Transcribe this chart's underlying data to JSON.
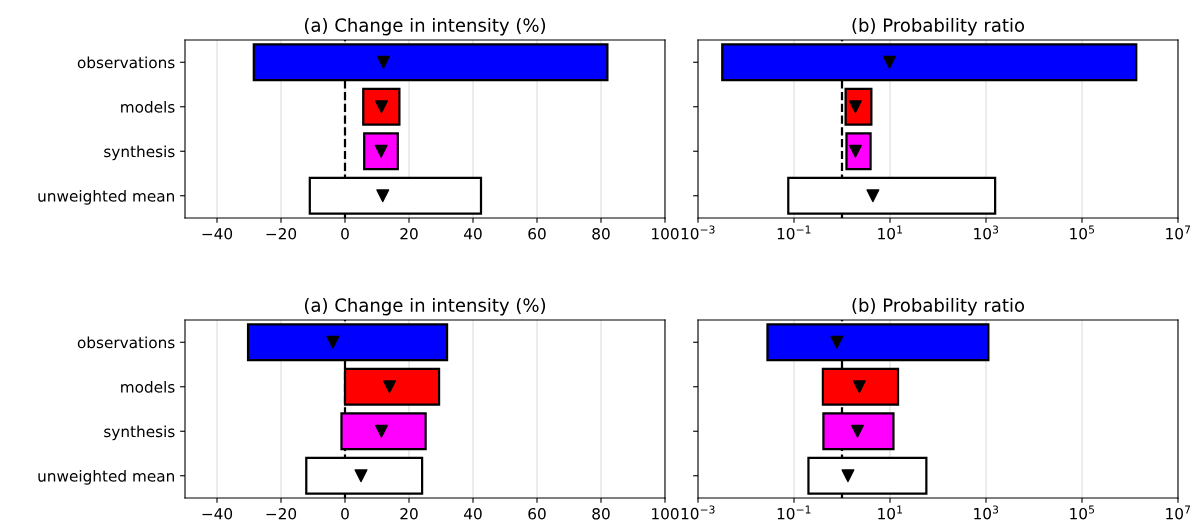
{
  "chart_data": [
    {
      "type": "bar",
      "orientation": "horizontal",
      "title": "(a) Change in intensity (%)",
      "categories": [
        "observations",
        "models",
        "synthesis",
        "unweighted mean"
      ],
      "xlim": [
        -50,
        100
      ],
      "xticks": [
        {
          "value": -40,
          "label": "−40"
        },
        {
          "value": -20,
          "label": "−20"
        },
        0,
        20,
        40,
        60,
        80,
        100
      ],
      "grid": "x",
      "series": [
        {
          "type": "bar",
          "colors": [
            "#0000ff",
            "#ff0000",
            "#ff00ff",
            "#ffffff"
          ],
          "base": [
            -28.5,
            5.7,
            6,
            -11
          ],
          "values": [
            110.5,
            11.3,
            10.5,
            53.5
          ]
        },
        {
          "type": "scatter",
          "marker": "triangle",
          "color": "#000000",
          "values": [
            12,
            11.4,
            11.3,
            11.8
          ]
        }
      ],
      "ref_lines": [
        {
          "axis": "x",
          "value": 0,
          "color": "#000000",
          "line_style": "dashed"
        }
      ]
    },
    {
      "type": "bar",
      "orientation": "horizontal",
      "title": "(b) Probability ratio",
      "categories": [
        null,
        null,
        null,
        null
      ],
      "log": "x",
      "xlim": [
        0.001,
        10000000
      ],
      "xticks": [
        {
          "value": 0.001,
          "label": "10$^{−3}$"
        },
        {
          "value": 0.1,
          "label": "10$^{−1}$"
        },
        {
          "value": 10,
          "label": "10$^{1}$"
        },
        {
          "value": 1000,
          "label": "10$^{3}$"
        },
        {
          "value": 100000,
          "label": "10$^{5}$"
        },
        {
          "value": 10000000,
          "label": "10$^{7}$"
        }
      ],
      "grid": "x",
      "series": [
        {
          "type": "bar",
          "colors": [
            "#0000ff",
            "#ff0000",
            "#ff00ff",
            "#ffffff"
          ],
          "base": [
            0.0032,
            1.19,
            1.24,
            0.076
          ],
          "values": [
            1350000,
            2.9,
            2.7,
            1550
          ]
        },
        {
          "type": "scatter",
          "marker": "triangle",
          "color": "#000000",
          "values": [
            9.7,
            1.9,
            1.9,
            4.4
          ]
        }
      ],
      "ref_lines": [
        {
          "axis": "x",
          "value": 1,
          "color": "#000000",
          "line_style": "dashed"
        }
      ]
    },
    {
      "type": "bar",
      "orientation": "horizontal",
      "title": "(a) Change in intensity (%)",
      "categories": [
        "observations",
        "models",
        "synthesis",
        "unweighted mean"
      ],
      "xlim": [
        -50,
        100
      ],
      "xticks": [
        {
          "value": -40,
          "label": "−40"
        },
        {
          "value": -20,
          "label": "−20"
        },
        0,
        20,
        40,
        60,
        80,
        100
      ],
      "grid": "x",
      "series": [
        {
          "type": "bar",
          "colors": [
            "#0000ff",
            "#ff0000",
            "#ff00ff",
            "#ffffff"
          ],
          "base": [
            -30.3,
            0,
            -1.1,
            -12.1
          ],
          "values": [
            62.2,
            29.4,
            26.3,
            36.2
          ]
        },
        {
          "type": "scatter",
          "marker": "triangle",
          "color": "#000000",
          "values": [
            -3.8,
            13.9,
            11.4,
            5
          ]
        }
      ],
      "ref_lines": [
        {
          "axis": "x",
          "value": 0,
          "color": "#000000",
          "line_style": "dashed"
        }
      ]
    },
    {
      "type": "bar",
      "orientation": "horizontal",
      "title": "(b) Probability ratio",
      "categories": [
        null,
        null,
        null,
        null
      ],
      "log": "x",
      "xlim": [
        0.001,
        10000000
      ],
      "xticks": [
        {
          "value": 0.001,
          "label": "10$^{−3}$"
        },
        {
          "value": 0.1,
          "label": "10$^{−1}$"
        },
        {
          "value": 10,
          "label": "10$^{1}$"
        },
        {
          "value": 1000,
          "label": "10$^{3}$"
        },
        {
          "value": 100000,
          "label": "10$^{5}$"
        },
        {
          "value": 10000000,
          "label": "10$^{7}$"
        }
      ],
      "grid": "x",
      "series": [
        {
          "type": "bar",
          "colors": [
            "#0000ff",
            "#ff0000",
            "#ff00ff",
            "#ffffff"
          ],
          "base": [
            0.028,
            0.4,
            0.41,
            0.2
          ],
          "values": [
            1120,
            14.3,
            11.4,
            57
          ]
        },
        {
          "type": "scatter",
          "marker": "triangle",
          "color": "#000000",
          "values": [
            0.78,
            2.3,
            2.1,
            1.33
          ]
        }
      ],
      "ref_lines": [
        {
          "axis": "x",
          "value": 1,
          "color": "#000000",
          "line_style": "dashed"
        }
      ]
    }
  ]
}
